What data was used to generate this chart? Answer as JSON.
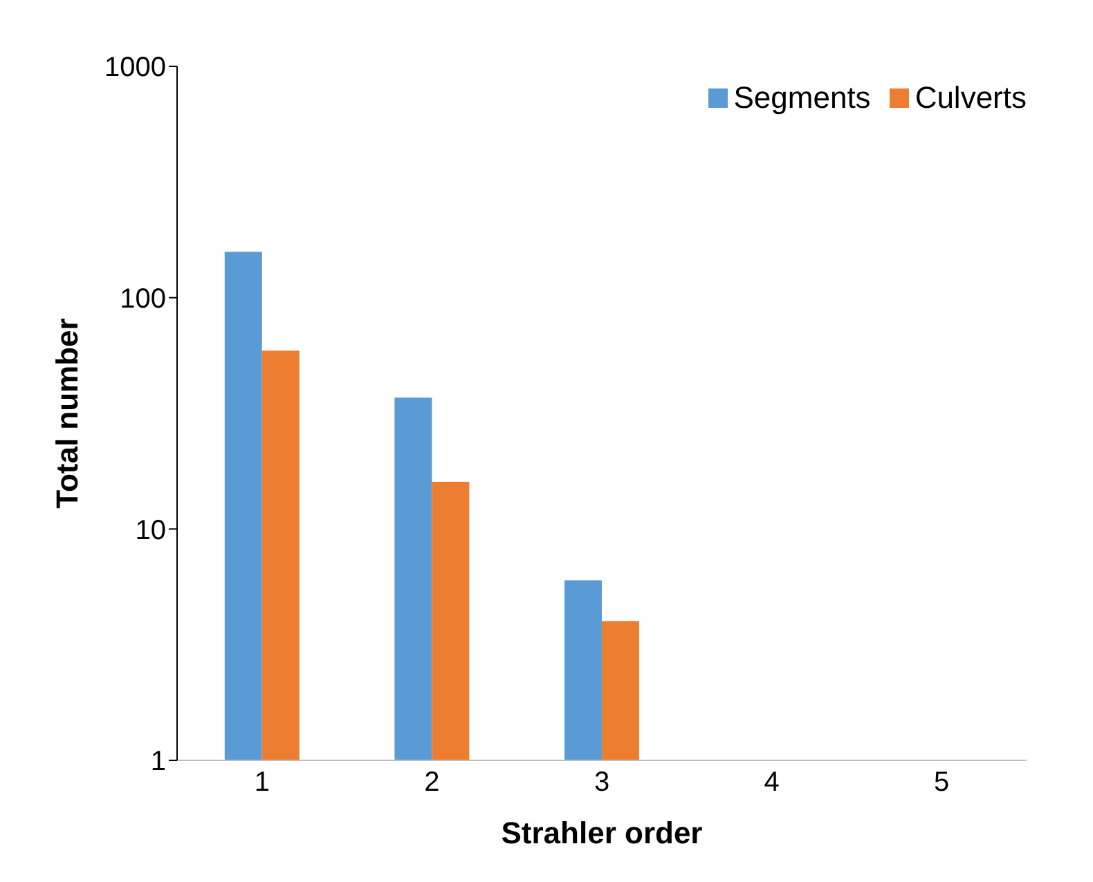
{
  "chart_data": {
    "type": "bar",
    "xlabel": "Strahler order",
    "ylabel": "Total number",
    "categories": [
      "1",
      "2",
      "3",
      "4",
      "5"
    ],
    "series": [
      {
        "name": "Segments",
        "color": "#5b9bd5",
        "values": [
          158,
          37,
          6,
          null,
          null
        ]
      },
      {
        "name": "Culverts",
        "color": "#ed7d31",
        "values": [
          59,
          16,
          4,
          null,
          null
        ]
      }
    ],
    "log": "y",
    "ylim": [
      1,
      1000
    ],
    "yticks": [
      1,
      10,
      100,
      1000
    ],
    "legend": "top right"
  }
}
